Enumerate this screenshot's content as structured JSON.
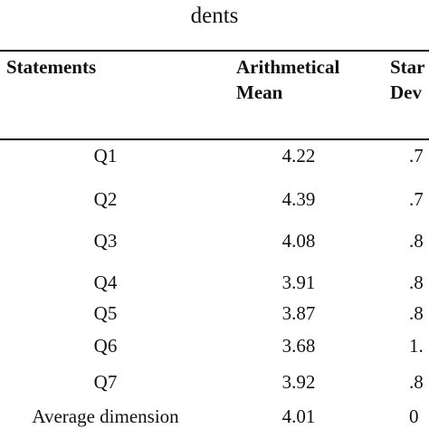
{
  "caption": "dents",
  "table": {
    "headers": {
      "statements": "Statements",
      "mean_line1": "Arithmetical",
      "mean_line2": "Mean",
      "sd_line1": "Star",
      "sd_line2": "Dev"
    },
    "rows": [
      {
        "statement": "Q1",
        "mean": "4.22",
        "sd": ".7"
      },
      {
        "statement": "Q2",
        "mean": "4.39",
        "sd": ".7"
      },
      {
        "statement": "Q3",
        "mean": "4.08",
        "sd": ".8"
      },
      {
        "statement": "Q4",
        "mean": "3.91",
        "sd": ".8"
      },
      {
        "statement": "Q5",
        "mean": "3.87",
        "sd": ".8"
      },
      {
        "statement": "Q6",
        "mean": "3.68",
        "sd": "1."
      },
      {
        "statement": "Q7",
        "mean": "3.92",
        "sd": ".8"
      },
      {
        "statement": "Average dimension",
        "mean": "4.01",
        "sd": "0"
      }
    ]
  }
}
